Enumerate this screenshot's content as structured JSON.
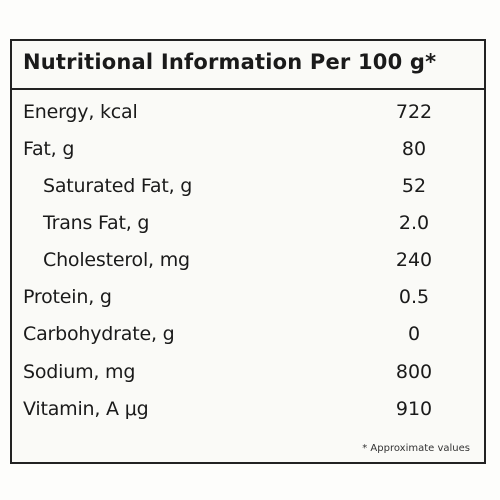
{
  "panel": {
    "title": "Nutritional Information Per 100 g*",
    "rows": [
      {
        "label": "Energy, kcal",
        "value": "722"
      },
      {
        "label": "Fat, g",
        "value": "80"
      },
      {
        "label": "Saturated Fat, g",
        "value": "52"
      },
      {
        "label": "Trans Fat, g",
        "value": "2.0"
      },
      {
        "label": "Cholesterol, mg",
        "value": "240"
      },
      {
        "label": "Protein, g",
        "value": "0.5"
      },
      {
        "label": "Carbohydrate, g",
        "value": "0"
      },
      {
        "label": "Sodium, mg",
        "value": "800"
      },
      {
        "label": "Vitamin, A μg",
        "value": "910"
      }
    ],
    "footnote": "* Approximate values"
  }
}
